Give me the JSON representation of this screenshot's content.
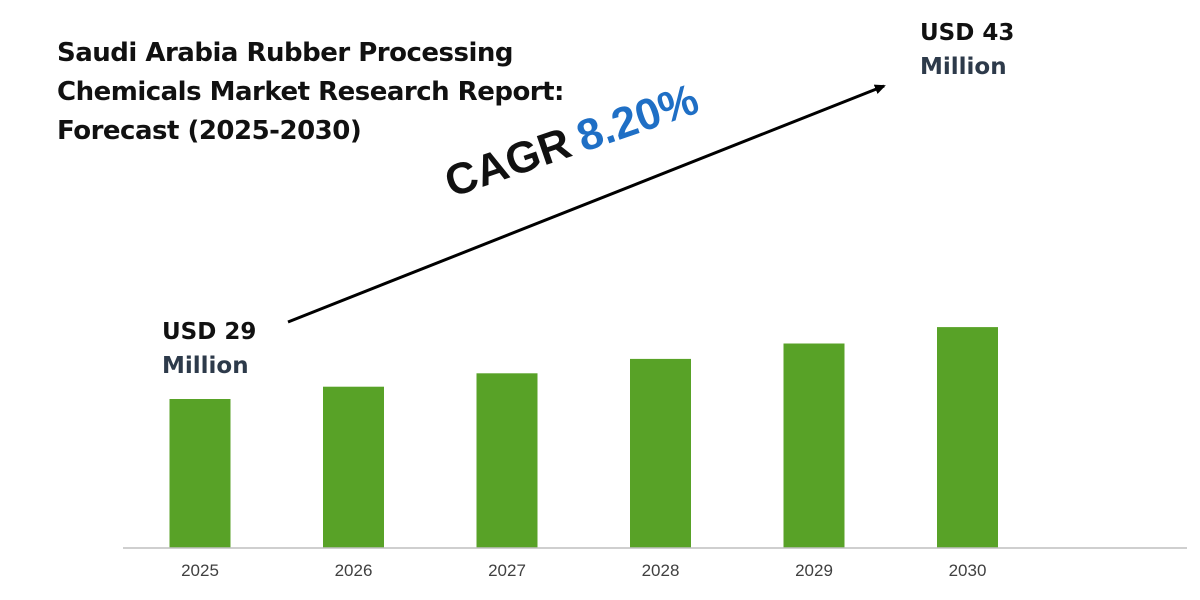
{
  "title": "Saudi Arabia Rubber Processing Chemicals Market Research Report: Forecast (2025-2030)",
  "start_callout": {
    "line1": "USD 29",
    "line2": "Million"
  },
  "end_callout": {
    "line1": "USD 43",
    "line2": "Million"
  },
  "cagr": {
    "label": "CAGR",
    "value": "8.20%"
  },
  "colors": {
    "bar": "#58a227",
    "cagr_value": "#1f6fc5",
    "axis": "#bfbfbf",
    "arrow": "#000000"
  },
  "chart_data": {
    "type": "bar",
    "title": "Saudi Arabia Rubber Processing Chemicals Market Research Report: Forecast (2025-2030)",
    "categories": [
      "2025",
      "2026",
      "2027",
      "2028",
      "2029",
      "2030"
    ],
    "values": [
      29,
      31.4,
      34,
      36.8,
      39.8,
      43
    ],
    "ylim": [
      0,
      50
    ],
    "grid": false,
    "legend": "none",
    "xlabel": "",
    "ylabel": ""
  }
}
